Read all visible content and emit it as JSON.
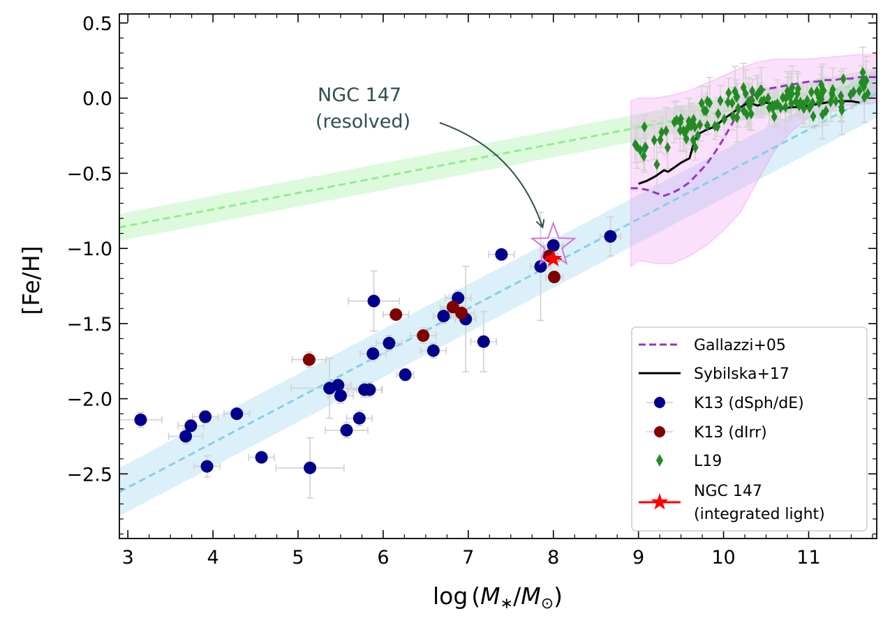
{
  "chart_data": {
    "type": "scatter",
    "xlabel_parts": [
      "log",
      "(",
      "M",
      "∗",
      "/",
      "M",
      "⊙",
      ")"
    ],
    "ylabel": "[Fe/H]",
    "xlim": [
      2.9,
      11.8
    ],
    "ylim": [
      -2.93,
      0.56
    ],
    "xticks": [
      3,
      4,
      5,
      6,
      7,
      8,
      9,
      10,
      11
    ],
    "xtick_labels": [
      "3",
      "4",
      "5",
      "6",
      "7",
      "8",
      "9",
      "10",
      "11"
    ],
    "yticks": [
      0.5,
      0.0,
      -0.5,
      -1.0,
      -1.5,
      -2.0,
      -2.5
    ],
    "ytick_labels": [
      "0.5",
      "0.0",
      "−0.5",
      "−1.0",
      "−1.5",
      "−2.0",
      "−2.5"
    ],
    "ticks_direction": "in",
    "grid": false,
    "legend_position": "lower-right",
    "colors": {
      "k13_dsph": "#00008b",
      "k13_dirr": "#800000",
      "l19": "#228b22",
      "ngc147_integrated": "#ff0000",
      "ngc147_resolved": "#da70d6",
      "gallazzi": "#9932cc",
      "sybilska": "#000000",
      "green_relation": "#90ee90",
      "blue_relation": "#87ceeb",
      "pink_band": "#ee82ee",
      "annotation": "#2f4f4f",
      "errorbar": "#d3d3d3"
    },
    "legend": [
      {
        "key": "gallazzi",
        "label": "Gallazzi+05"
      },
      {
        "key": "sybilska",
        "label": "Sybilska+17"
      },
      {
        "key": "k13_dsph",
        "label": "K13 (dSph/dE)"
      },
      {
        "key": "k13_dirr",
        "label": "K13 (dIrr)"
      },
      {
        "key": "l19",
        "label": "L19"
      },
      {
        "key": "ngc147_integrated",
        "label": "NGC 147",
        "label2": "(integrated light)"
      }
    ],
    "annotation": {
      "line1": "NGC 147",
      "line2": "(resolved)",
      "x": 5.2,
      "y": -0.05,
      "target": [
        7.9,
        -0.87
      ]
    },
    "green_relation": {
      "x": [
        2.9,
        11.8
      ],
      "y": [
        -0.86,
        0.11
      ],
      "band": 0.09
    },
    "blue_relation": {
      "x": [
        2.9,
        11.8
      ],
      "y": [
        -2.62,
        0.03
      ],
      "band": 0.16
    },
    "gallazzi": {
      "x": [
        8.91,
        9.0,
        9.1,
        9.2,
        9.3,
        9.4,
        9.5,
        9.6,
        9.7,
        9.8,
        9.9,
        10.0,
        10.1,
        10.2,
        10.3,
        10.4,
        10.5,
        10.6,
        10.7,
        10.8,
        10.9,
        11.0,
        11.1,
        11.2,
        11.3,
        11.4,
        11.5,
        11.6,
        11.7,
        11.8
      ],
      "y": [
        -0.6,
        -0.6,
        -0.61,
        -0.63,
        -0.65,
        -0.63,
        -0.6,
        -0.56,
        -0.5,
        -0.44,
        -0.36,
        -0.27,
        -0.17,
        -0.07,
        0.0,
        0.04,
        0.06,
        0.07,
        0.08,
        0.09,
        0.1,
        0.11,
        0.11,
        0.12,
        0.12,
        0.13,
        0.13,
        0.14,
        0.14,
        0.14
      ]
    },
    "gallazzi_band": {
      "x": [
        8.91,
        9.0,
        9.2,
        9.4,
        9.6,
        9.8,
        10.0,
        10.2,
        10.4,
        10.6,
        10.8,
        11.0,
        11.2,
        11.4,
        11.6,
        11.8
      ],
      "upper": [
        -0.02,
        0.0,
        0.0,
        0.02,
        0.05,
        0.1,
        0.15,
        0.2,
        0.24,
        0.26,
        0.26,
        0.26,
        0.27,
        0.28,
        0.29,
        0.29
      ],
      "lower": [
        -1.12,
        -1.08,
        -1.1,
        -1.1,
        -1.05,
        -0.98,
        -0.88,
        -0.76,
        -0.55,
        -0.35,
        -0.22,
        -0.13,
        -0.08,
        -0.05,
        -0.04,
        -0.03
      ]
    },
    "sybilska": {
      "x": [
        9.0,
        9.1,
        9.2,
        9.3,
        9.35,
        9.4,
        9.5,
        9.6,
        9.65,
        9.7,
        9.8,
        9.9,
        10.0,
        10.1,
        10.2,
        10.3,
        10.4,
        10.5,
        10.6,
        10.7,
        10.8,
        10.9,
        11.0,
        11.1,
        11.2,
        11.3,
        11.4,
        11.5,
        11.6
      ],
      "y": [
        -0.57,
        -0.55,
        -0.52,
        -0.48,
        -0.49,
        -0.47,
        -0.43,
        -0.4,
        -0.3,
        -0.24,
        -0.21,
        -0.19,
        -0.14,
        -0.1,
        -0.06,
        -0.03,
        -0.05,
        -0.03,
        -0.04,
        -0.07,
        -0.06,
        -0.06,
        -0.05,
        -0.04,
        -0.03,
        -0.02,
        -0.02,
        -0.02,
        -0.03
      ]
    },
    "k13_dsph": [
      {
        "x": 3.15,
        "y": -2.14,
        "xerr": 0.25,
        "yerr": 0.05
      },
      {
        "x": 3.68,
        "y": -2.25,
        "xerr": 0.2,
        "yerr": 0.05
      },
      {
        "x": 3.74,
        "y": -2.18,
        "xerr": 0.15,
        "yerr": 0.04
      },
      {
        "x": 3.91,
        "y": -2.12,
        "xerr": 0.15,
        "yerr": 0.04
      },
      {
        "x": 3.93,
        "y": -2.45,
        "xerr": 0.15,
        "yerr": 0.07
      },
      {
        "x": 4.28,
        "y": -2.1,
        "xerr": 0.15,
        "yerr": 0.03
      },
      {
        "x": 4.57,
        "y": -2.39,
        "xerr": 0.15,
        "yerr": 0.03
      },
      {
        "x": 5.14,
        "y": -2.46,
        "xerr": 0.4,
        "yerr": 0.2
      },
      {
        "x": 5.37,
        "y": -1.93,
        "xerr": 0.45,
        "yerr": 0.2
      },
      {
        "x": 5.47,
        "y": -1.91,
        "xerr": 0.15,
        "yerr": 0.04
      },
      {
        "x": 5.5,
        "y": -1.98,
        "xerr": 0.15,
        "yerr": 0.05
      },
      {
        "x": 5.57,
        "y": -2.21,
        "xerr": 0.25,
        "yerr": 0.05
      },
      {
        "x": 5.72,
        "y": -2.13,
        "xerr": 0.15,
        "yerr": 0.05
      },
      {
        "x": 5.78,
        "y": -1.94,
        "xerr": 0.2,
        "yerr": 0.05
      },
      {
        "x": 5.84,
        "y": -1.94,
        "xerr": 0.15,
        "yerr": 0.05
      },
      {
        "x": 5.88,
        "y": -1.7,
        "xerr": 0.15,
        "yerr": 0.05
      },
      {
        "x": 5.89,
        "y": -1.35,
        "xerr": 0.3,
        "yerr": 0.2
      },
      {
        "x": 6.07,
        "y": -1.63,
        "xerr": 0.15,
        "yerr": 0.05
      },
      {
        "x": 6.26,
        "y": -1.84,
        "xerr": 0.1,
        "yerr": 0.04
      },
      {
        "x": 6.59,
        "y": -1.68,
        "xerr": 0.15,
        "yerr": 0.05
      },
      {
        "x": 6.71,
        "y": -1.45,
        "xerr": 0.12,
        "yerr": 0.05
      },
      {
        "x": 6.88,
        "y": -1.33,
        "xerr": 0.15,
        "yerr": 0.05
      },
      {
        "x": 6.97,
        "y": -1.47,
        "xerr": 0.12,
        "yerr": 0.35
      },
      {
        "x": 7.18,
        "y": -1.62,
        "xerr": 0.15,
        "yerr": 0.2
      },
      {
        "x": 7.39,
        "y": -1.04,
        "xerr": 0.15,
        "yerr": 0.03
      },
      {
        "x": 7.85,
        "y": -1.12,
        "xerr": 0.12,
        "yerr": 0.36
      },
      {
        "x": 8.0,
        "y": -0.98,
        "xerr": 0.12,
        "yerr": 0.05
      },
      {
        "x": 8.67,
        "y": -0.92,
        "xerr": 0.12,
        "yerr": 0.13
      }
    ],
    "k13_dirr": [
      {
        "x": 5.13,
        "y": -1.74,
        "xerr": 0.2,
        "yerr": 0.05
      },
      {
        "x": 6.15,
        "y": -1.44,
        "xerr": 0.15,
        "yerr": 0.03
      },
      {
        "x": 6.47,
        "y": -1.58,
        "xerr": 0.15,
        "yerr": 0.05
      },
      {
        "x": 6.82,
        "y": -1.39,
        "xerr": 0.15,
        "yerr": 0.05
      },
      {
        "x": 6.92,
        "y": -1.43,
        "xerr": 0.15,
        "yerr": 0.05
      },
      {
        "x": 7.95,
        "y": -1.05,
        "xerr": 0.1,
        "yerr": 0.05
      },
      {
        "x": 8.01,
        "y": -1.19,
        "xerr": 0.1,
        "yerr": 0.03
      }
    ],
    "ngc147_integrated": {
      "x": 8.0,
      "y": -1.07,
      "xerr": 0.1,
      "yerr": 0.05
    },
    "ngc147_resolved": {
      "x": 8.0,
      "y": -0.98
    }
  }
}
